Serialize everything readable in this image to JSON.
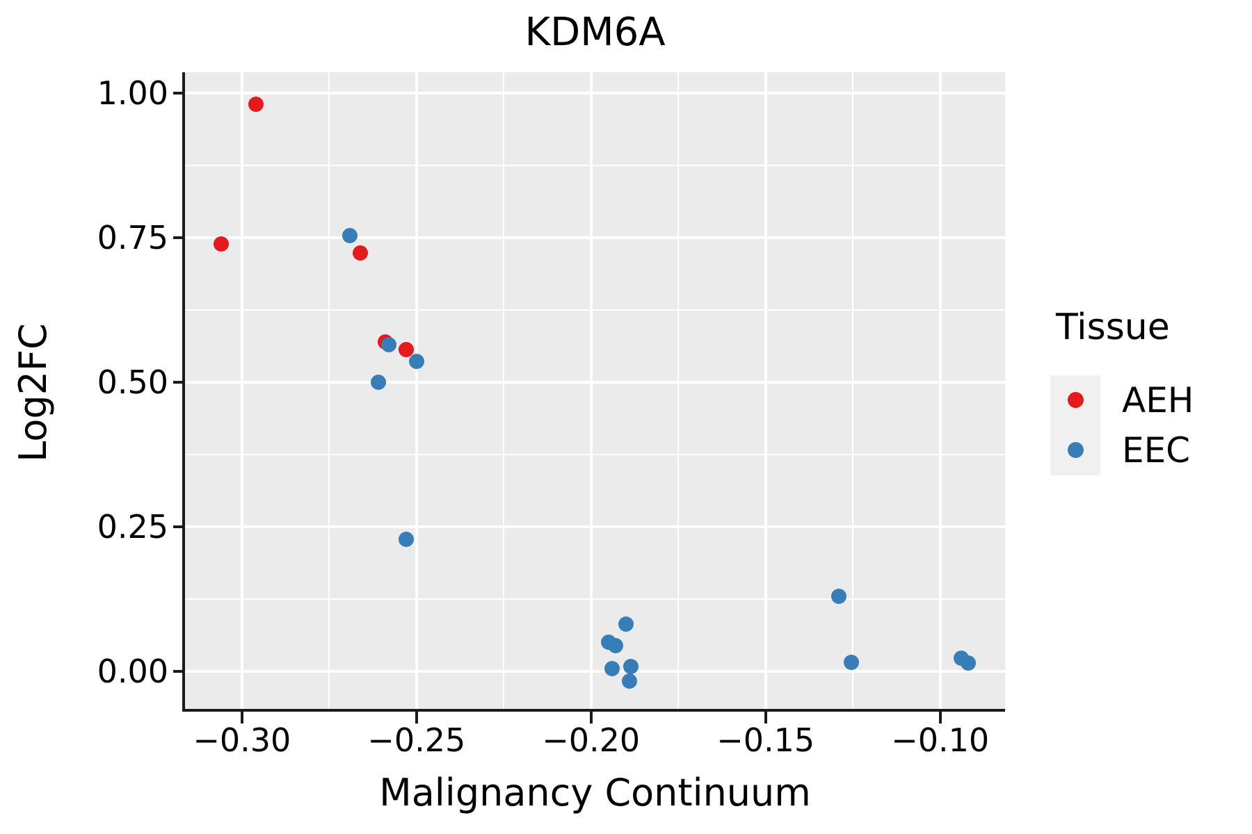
{
  "title": "KDM6A",
  "axes": {
    "x": {
      "label": "Malignancy Continuum",
      "tick_labels": [
        "−0.30",
        "−0.25",
        "−0.20",
        "−0.15",
        "−0.10"
      ],
      "tick_values": [
        -0.3,
        -0.25,
        -0.2,
        -0.15,
        -0.1
      ],
      "minor_values": [
        -0.275,
        -0.225,
        -0.175,
        -0.125
      ]
    },
    "y": {
      "label": "Log2FC",
      "tick_labels": [
        "1.00",
        "0.75",
        "0.50",
        "0.25",
        "0.00"
      ],
      "tick_values": [
        1.0,
        0.75,
        0.5,
        0.25,
        0.0
      ],
      "minor_values": [
        0.875,
        0.625,
        0.375,
        0.125
      ]
    }
  },
  "legend": {
    "title": "Tissue",
    "entries": [
      {
        "label": "AEH",
        "color": "#e41a1c"
      },
      {
        "label": "EEC",
        "color": "#377eb8"
      }
    ]
  },
  "colors": {
    "panel_background": "#ebebeb",
    "gridline": "#ffffff",
    "axis_line": "#1a1a1a",
    "aeh": "#e41a1c",
    "eec": "#377eb8"
  },
  "chart_data": {
    "type": "scatter",
    "title": "KDM6A",
    "xlabel": "Malignancy Continuum",
    "ylabel": "Log2FC",
    "xlim": [
      -0.3163,
      -0.0814
    ],
    "ylim": [
      -0.0647,
      1.036
    ],
    "grid": true,
    "legend_position": "right",
    "series": [
      {
        "name": "AEH",
        "color": "#e41a1c",
        "points": [
          [
            -0.296,
            0.981
          ],
          [
            -0.306,
            0.739
          ],
          [
            -0.266,
            0.723
          ],
          [
            -0.259,
            0.57
          ],
          [
            -0.253,
            0.557
          ]
        ]
      },
      {
        "name": "EEC",
        "color": "#377eb8",
        "points": [
          [
            -0.269,
            0.754
          ],
          [
            -0.258,
            0.565
          ],
          [
            -0.25,
            0.536
          ],
          [
            -0.261,
            0.5
          ],
          [
            -0.253,
            0.229
          ],
          [
            -0.19,
            0.082
          ],
          [
            -0.195,
            0.051
          ],
          [
            -0.193,
            0.045
          ],
          [
            -0.194,
            0.005
          ],
          [
            -0.1885,
            0.008
          ],
          [
            -0.189,
            -0.017
          ],
          [
            -0.129,
            0.13
          ],
          [
            -0.1255,
            0.016
          ],
          [
            -0.094,
            0.023
          ],
          [
            -0.092,
            0.015
          ]
        ]
      }
    ]
  }
}
